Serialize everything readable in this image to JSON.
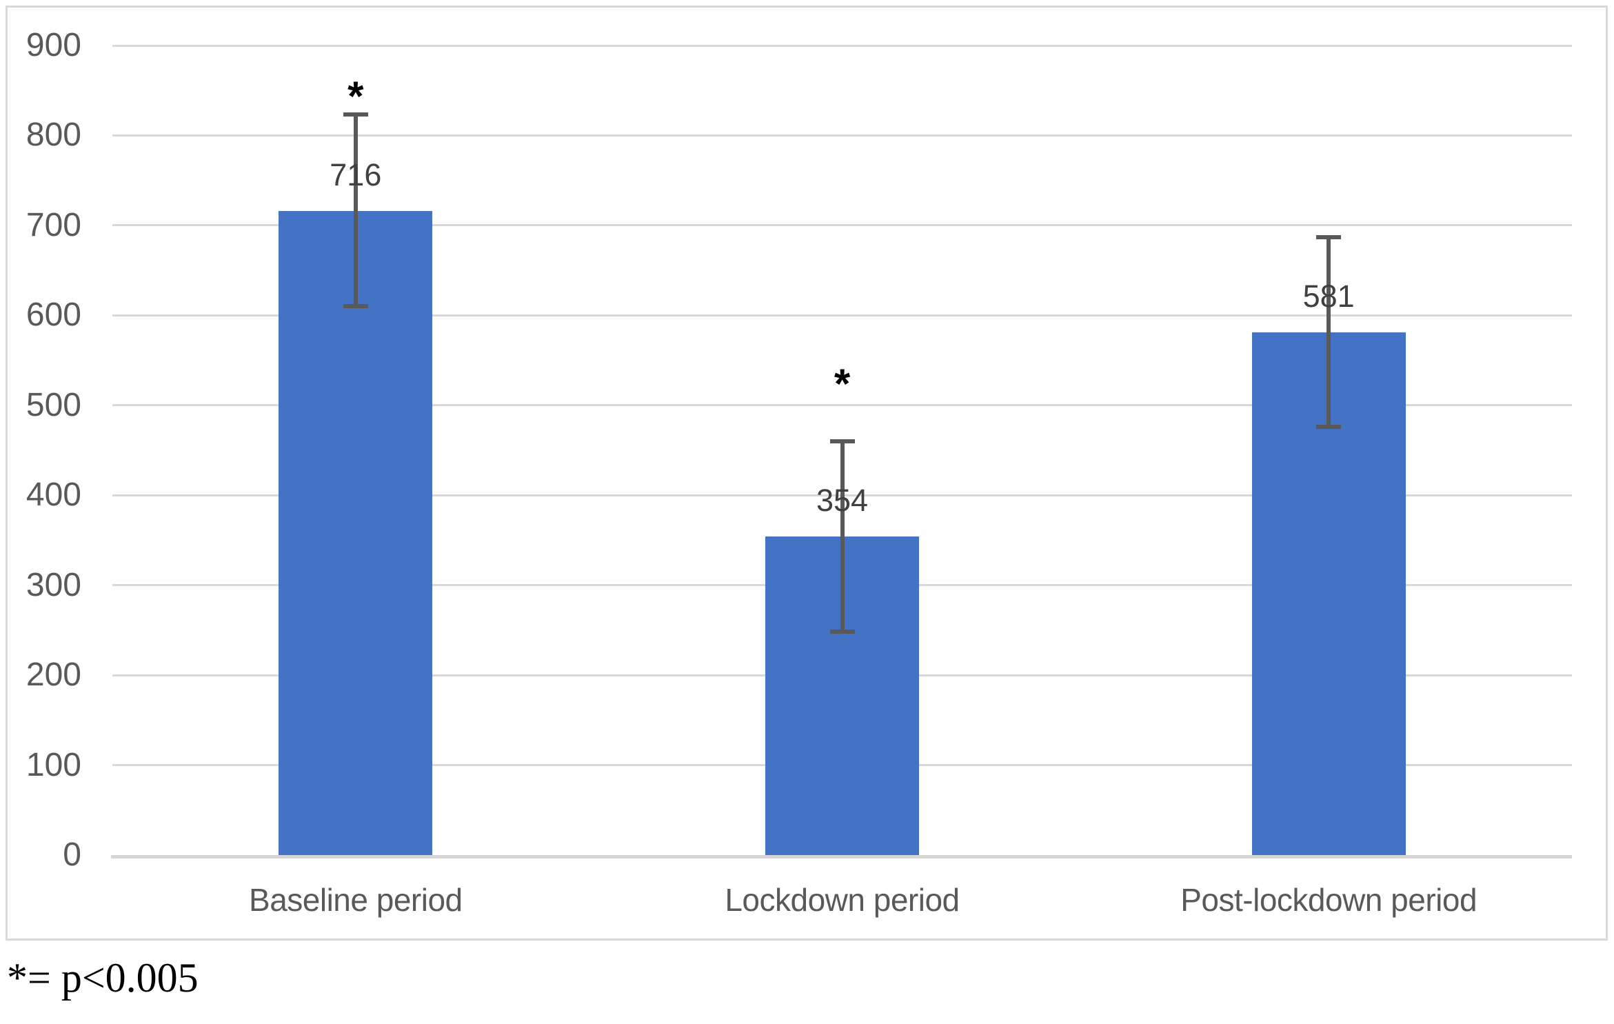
{
  "footnote": "*= p<0.005",
  "chart_data": {
    "type": "bar",
    "title": "",
    "xlabel": "",
    "ylabel": "",
    "categories": [
      "Baseline period",
      "Lockdown period",
      "Post-lockdown period"
    ],
    "values": [
      716,
      354,
      581
    ],
    "data_labels": [
      "716",
      "354",
      "581"
    ],
    "error_plus": [
      107,
      106,
      106
    ],
    "error_minus": [
      106,
      106,
      105
    ],
    "significance_markers": [
      "*",
      "*",
      null
    ],
    "ylim": [
      0,
      900
    ],
    "yticks": [
      0,
      100,
      200,
      300,
      400,
      500,
      600,
      700,
      800,
      900
    ],
    "grid": true,
    "legend": false,
    "colors": {
      "bar_fill": "#4472C4",
      "error_bar": "#595959",
      "gridline": "#d9d9d9",
      "axis_line": "#d6d6d6",
      "tick_label": "#595959",
      "category_label": "#595959",
      "data_label": "#404040",
      "marker": "#000000",
      "frame_border": "#d9d9d9"
    }
  }
}
